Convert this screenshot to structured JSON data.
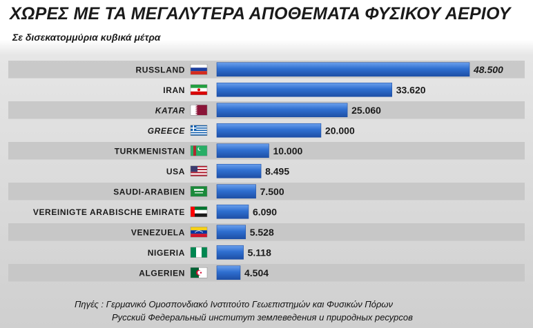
{
  "title": "ΧΩΡΕΣ ΜΕ ΤΑ ΜΕΓΑΛΥΤΕΡΑ ΑΠΟΘΕΜΑΤΑ ΦΥΣΙΚΟΥ ΑΕΡΙΟΥ",
  "subtitle": "Σε δισεκατομμύρια  κυβικά μέτρα",
  "source_lines": [
    "Πηγές : Γερμανικό Ομοσπονδιακό Ινστιτούτο Γεωεπιστημών και Φυσικών Πόρων",
    "Русский Федеральный институт землеведения и природных ресурсов"
  ],
  "colors": {
    "bar": "#2f6fd0",
    "bar_light": "#6ba0ec",
    "bar_dark": "#1e4fa6",
    "stripe": "#c4c4c4",
    "text": "#1a1a1a"
  },
  "chart_data": {
    "type": "bar",
    "orientation": "horizontal",
    "title": "ΧΩΡΕΣ ΜΕ ΤΑ ΜΕΓΑΛΥΤΕΡΑ ΑΠΟΘΕΜΑΤΑ ΦΥΣΙΚΟΥ ΑΕΡΙΟΥ",
    "subtitle": "Σε δισεκατομμύρια  κυβικά μέτρα",
    "categories": [
      "RUSSLAND",
      "IRAN",
      "KATAR",
      "GREECE",
      "TURKMENISTAN",
      "USA",
      "SAUDI-ARABIEN",
      "VEREINIGTE ARABISCHE EMIRATE",
      "VENEZUELA",
      "NIGERIA",
      "ALGERIEN"
    ],
    "values": [
      48500,
      33620,
      25060,
      20000,
      10000,
      8495,
      7500,
      6090,
      5528,
      5118,
      4504
    ],
    "value_labels": [
      "48.500",
      "33.620",
      "25.060",
      "20.000",
      "10.000",
      "8.495",
      "7.500",
      "6.090",
      "5.528",
      "5.118",
      "4.504"
    ],
    "flags": [
      "russia-flag-icon",
      "iran-flag-icon",
      "qatar-flag-icon",
      "greece-flag-icon",
      "turkmenistan-flag-icon",
      "usa-flag-icon",
      "saudi-arabia-flag-icon",
      "uae-flag-icon",
      "venezuela-flag-icon",
      "nigeria-flag-icon",
      "algeria-flag-icon"
    ],
    "italic_categories": [
      "KATAR",
      "GREECE"
    ],
    "grid": false
  }
}
